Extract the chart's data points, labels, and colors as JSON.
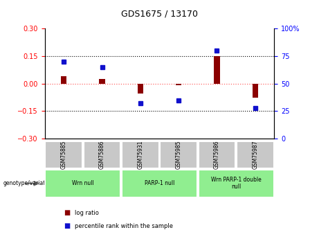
{
  "title": "GDS1675 / 13170",
  "samples": [
    "GSM75885",
    "GSM75886",
    "GSM75931",
    "GSM75985",
    "GSM75986",
    "GSM75987"
  ],
  "log_ratio": [
    0.04,
    0.025,
    -0.055,
    -0.01,
    0.15,
    -0.075
  ],
  "percentile_rank": [
    70,
    65,
    32,
    35,
    80,
    28
  ],
  "groups_def": [
    {
      "label": "Wrn null",
      "start": 0,
      "end": 1
    },
    {
      "label": "PARP-1 null",
      "start": 2,
      "end": 3
    },
    {
      "label": "Wrn PARP-1 double\nnull",
      "start": 4,
      "end": 5
    }
  ],
  "ylim_left": [
    -0.3,
    0.3
  ],
  "yticks_left": [
    -0.3,
    -0.15,
    0.0,
    0.15,
    0.3
  ],
  "ylim_right": [
    0,
    100
  ],
  "yticks_right": [
    0,
    25,
    50,
    75,
    100
  ],
  "bar_color_red": "#8B0000",
  "bar_color_blue": "#1010CC",
  "dotted_line_color_red": "#FF6666",
  "sample_box_color": "#C8C8C8",
  "group_box_color": "#90EE90",
  "legend_red_label": "log ratio",
  "legend_blue_label": "percentile rank within the sample",
  "bar_width": 0.15
}
